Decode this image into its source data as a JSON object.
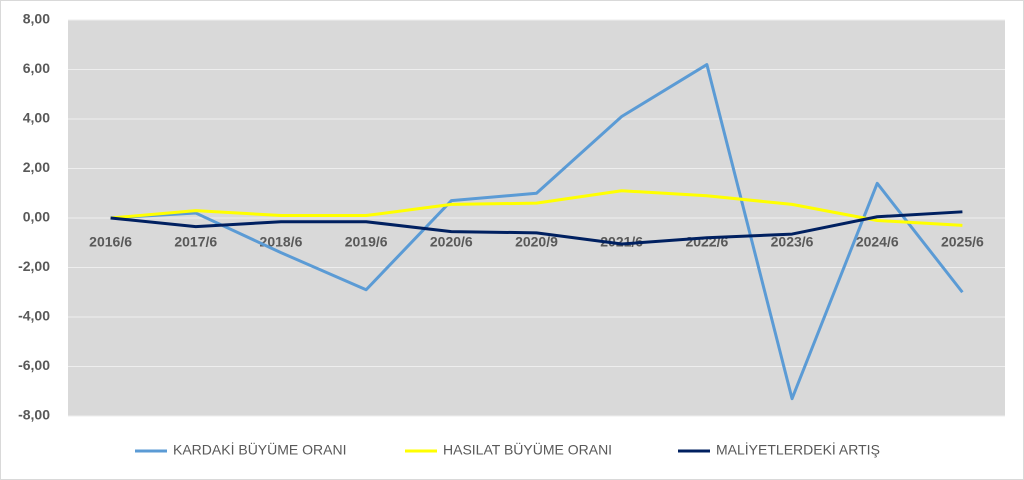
{
  "chart_data": {
    "type": "line",
    "categories": [
      "2016/6",
      "2017/6",
      "2018/6",
      "2019/6",
      "2020/6",
      "2020/9",
      "2021/6",
      "2022/6",
      "2023/6",
      "2024/6",
      "2025/6"
    ],
    "series": [
      {
        "name": "KARDAKİ BÜYÜME ORANI",
        "color": "#5b9bd5",
        "values": [
          0,
          0.2,
          -1.4,
          -2.9,
          0.7,
          1.0,
          4.1,
          6.2,
          -7.3,
          1.4,
          -3.0
        ]
      },
      {
        "name": "HASILAT BÜYÜME ORANI",
        "color": "#ffff00",
        "values": [
          0,
          0.3,
          0.1,
          0.1,
          0.55,
          0.6,
          1.1,
          0.9,
          0.55,
          -0.1,
          -0.3
        ]
      },
      {
        "name": "MALİYETLERDEKİ ARTIŞ",
        "color": "#002060",
        "values": [
          0,
          -0.35,
          -0.15,
          -0.15,
          -0.55,
          -0.6,
          -1.05,
          -0.8,
          -0.65,
          0.05,
          0.25
        ]
      }
    ],
    "ylim": [
      -8,
      8
    ],
    "yticks": [
      {
        "value": -8,
        "label": "-8,00"
      },
      {
        "value": -6,
        "label": "-6,00"
      },
      {
        "value": -4,
        "label": "-4,00"
      },
      {
        "value": -2,
        "label": "-2,00"
      },
      {
        "value": 0,
        "label": "0,00"
      },
      {
        "value": 2,
        "label": "2,00"
      },
      {
        "value": 4,
        "label": "4,00"
      },
      {
        "value": 6,
        "label": "6,00"
      },
      {
        "value": 8,
        "label": "8,00"
      }
    ],
    "grid": true,
    "legend": "bottom"
  }
}
